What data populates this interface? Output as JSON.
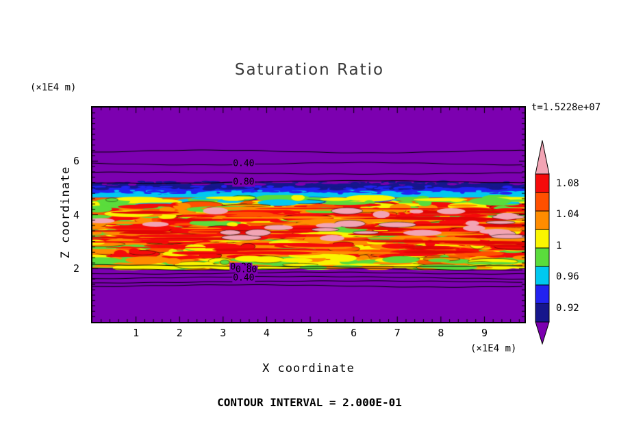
{
  "figure": {
    "title": "Saturation Ratio",
    "time_label": "t=1.5228e+07",
    "y_axis_units": "(×1E4 m)",
    "x_axis_units": "(×1E4 m)",
    "y_axis_label": "Z coordinate",
    "x_axis_label": "X coordinate",
    "footer": "CONTOUR INTERVAL = 2.000E-01"
  },
  "chart_data": {
    "type": "heatmap",
    "subtype": "filled-contour-plot",
    "title": "Saturation Ratio",
    "xlabel": "X coordinate",
    "ylabel": "Z coordinate",
    "x_units": "(×1E4 m)",
    "y_units": "(×1E4 m)",
    "time_annotation": "t=1.5228e+07",
    "contour_interval": "2.000E-01",
    "x_range": [
      0,
      9.92
    ],
    "y_range": [
      0,
      8
    ],
    "x_ticks": [
      1,
      2,
      3,
      4,
      5,
      6,
      7,
      8,
      9
    ],
    "y_ticks": [
      2,
      4,
      6
    ],
    "grid": false,
    "legend_position": "right-colorbar",
    "colors": {
      "background": "#7C00B0",
      "contour_line": "#000000",
      "frame": "#000000"
    },
    "bands": [
      {
        "y0": 0.352,
        "y1": 0.374,
        "color": "#16168C"
      },
      {
        "y0": 0.374,
        "y1": 0.394,
        "color": "#2222F0"
      },
      {
        "y0": 0.394,
        "y1": 0.42,
        "color": "#00C8F0"
      }
    ],
    "turbulence": {
      "y0": 0.42,
      "y1": 0.748,
      "base_color": "#F85A00",
      "blob_count": 950,
      "streak_count": 90,
      "pink_count": 26,
      "outline_fraction": 0.12,
      "top_palette": [
        "#FAF500",
        "#5ADC3C",
        "#00C8F0",
        "#5ADC3C",
        "#FAF500",
        "#2222F0"
      ],
      "mid_palette": [
        "#F50A0A",
        "#F50A0A",
        "#F50A0A",
        "#FF5000",
        "#FF8C00",
        "#FF8C00",
        "#FAF500",
        "#FAF500",
        "#5ADC3C",
        "#FF8C00",
        "#F50A0A"
      ],
      "bottom_palette": [
        "#FAF500",
        "#5ADC3C",
        "#FF8C00",
        "#FAF500",
        "#5ADC3C"
      ],
      "streak_palette": [
        "#F50A0A",
        "#E00505",
        "#FF8C00"
      ],
      "pink_color": "#F2A4B4"
    },
    "contour_lines": [
      0.205,
      0.262,
      0.306,
      0.347,
      0.738,
      0.754,
      0.772,
      0.795,
      0.814,
      0.832
    ],
    "contour_labels": [
      {
        "text": "0.40",
        "x": 0.35,
        "y": 0.262
      },
      {
        "text": "0.80",
        "x": 0.35,
        "y": 0.347
      },
      {
        "text": "0.20",
        "x": 0.344,
        "y": 0.744
      },
      {
        "text": "0.80",
        "x": 0.356,
        "y": 0.756
      },
      {
        "text": "0.40",
        "x": 0.35,
        "y": 0.795
      }
    ],
    "colorbar": {
      "above_color": "#F2A4B4",
      "below_color": "#7C00B0",
      "segments": [
        "#F50A0A",
        "#FF5000",
        "#FF8C00",
        "#FAF500",
        "#5ADC3C",
        "#00C8F0",
        "#2222F0",
        "#16168C"
      ],
      "labels": [
        {
          "text": "1.08",
          "pos": 0.07
        },
        {
          "text": "1.04",
          "pos": 0.28
        },
        {
          "text": "1",
          "pos": 0.49
        },
        {
          "text": "0.96",
          "pos": 0.7
        },
        {
          "text": "0.92",
          "pos": 0.91
        }
      ]
    },
    "seed": 20240711
  }
}
